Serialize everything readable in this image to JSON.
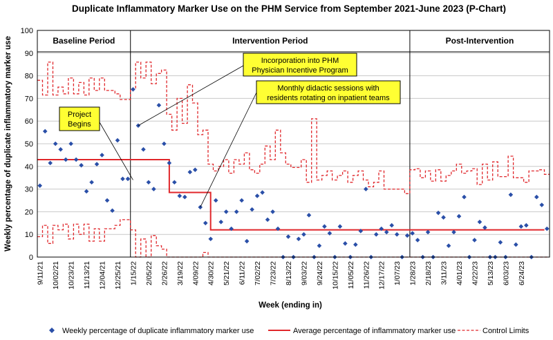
{
  "chart_data": {
    "type": "line",
    "title": "Duplicate Inflammatory Marker Use on the PHM Service from September 2021-June 2023 (P-Chart)",
    "xlabel": "Week (ending in)",
    "ylabel": "Weekly percentage of duplicate inflammatory marker use",
    "ylim": [
      0,
      100
    ],
    "yticks": [
      "0",
      "10",
      "20",
      "30",
      "40",
      "50",
      "60",
      "70",
      "80",
      "90",
      "100"
    ],
    "grid": true,
    "xtick_labels": [
      "9/11/21",
      "10/02/21",
      "10/23/21",
      "11/13/21",
      "12/04/21",
      "12/25/21",
      "1/15/22",
      "2/05/22",
      "2/26/22",
      "3/19/22",
      "4/09/22",
      "4/30/22",
      "5/21/22",
      "6/11/22",
      "7/02/22",
      "7/23/22",
      "8/13/22",
      "9/03/22",
      "9/24/22",
      "10/15/22",
      "11/05/22",
      "11/26/22",
      "12/17/22",
      "1/07/23",
      "1/28/23",
      "2/18/23",
      "3/11/23",
      "4/01/23",
      "4/22/23",
      "5/13/23",
      "6/03/23",
      "6/24/23"
    ],
    "periods": [
      "Baseline Period",
      "Intervention Period",
      "Post-Intervention"
    ],
    "period_breaks_week_index": [
      17.5,
      71.5
    ],
    "annotations": [
      {
        "label": "Project Begins",
        "line1": "Project",
        "line2": "Begins",
        "week_index": 18,
        "value": 34
      },
      {
        "label": "Incorporation into PHM Physician Incentive Program",
        "line1": "Incorporation into PHM",
        "line2": "Physician Incentive Program",
        "week_index": 19,
        "value": 58
      },
      {
        "label": "Monthly didactic sessions with residents rotating on inpatient teams",
        "line1": "Monthly didactic sessions with",
        "line2": "residents rotating on inpatient teams",
        "week_index": 31,
        "value": 22
      }
    ],
    "series": [
      {
        "name": "Weekly percentage of duplicate inflammatory marker use",
        "style": "diamond",
        "color": "#2a4fa8",
        "values": [
          31.5,
          55.5,
          41.5,
          50,
          47.5,
          43,
          50,
          43,
          40.5,
          29,
          33,
          41,
          45,
          25,
          20.5,
          51.5,
          34.5,
          34.5,
          74,
          58,
          47.5,
          33,
          30,
          67,
          50,
          41.5,
          33,
          27,
          26.5,
          37.5,
          38.5,
          22,
          15,
          8,
          25,
          15.5,
          20,
          12.5,
          20,
          25,
          7,
          21,
          27,
          28.5,
          16.5,
          20,
          12.5,
          0,
          9,
          0,
          8,
          10,
          18.5,
          0,
          5,
          13.5,
          10.5,
          0,
          13.5,
          6,
          0,
          5.5,
          11.5,
          30,
          0,
          10,
          12.5,
          11,
          14,
          10,
          0,
          9.5,
          10.5,
          7.5,
          0,
          11,
          0,
          19.5,
          17.5,
          5,
          11,
          18,
          26.5,
          0,
          7.5,
          15.5,
          13,
          0,
          0,
          6.5,
          0,
          27.5,
          5.5,
          13.5,
          14,
          0,
          26.5,
          23,
          12.5
        ]
      },
      {
        "name": "Average percentage of inflammatory marker use",
        "style": "solid",
        "color": "#e0262a",
        "segments": [
          {
            "from": 0,
            "to": 25.5,
            "value": 43
          },
          {
            "from": 25.5,
            "to": 33.5,
            "value": 28.5
          },
          {
            "from": 33.5,
            "to": 98,
            "value": 12
          }
        ]
      },
      {
        "name": "Control Limits",
        "style": "dashed",
        "color": "#e0262a",
        "ucl": [
          78,
          71.5,
          86,
          71.5,
          75,
          72,
          79,
          72,
          77,
          71.5,
          79,
          73.5,
          79,
          73.5,
          73.5,
          72,
          69.5,
          69.5,
          74,
          86,
          79,
          86,
          76.5,
          81,
          82.5,
          63,
          56,
          70,
          59,
          76,
          68,
          54,
          56,
          41,
          38,
          40,
          43,
          37,
          43,
          41,
          46,
          38.5,
          37,
          41,
          49,
          43,
          56,
          46,
          41,
          39.5,
          39.5,
          43,
          33,
          61,
          34,
          36,
          38,
          34,
          36,
          38,
          33,
          36,
          38,
          34,
          31,
          33,
          38,
          30,
          30,
          30,
          30,
          28,
          38.5,
          39,
          35,
          38,
          33.5,
          38.5,
          33.5,
          36,
          38,
          41,
          37,
          38,
          39,
          32,
          41,
          34,
          42,
          35.5,
          35.5,
          44.5,
          35,
          35,
          33,
          38,
          38,
          38.5,
          36.5
        ],
        "lcl": [
          9,
          14,
          6,
          14,
          12,
          14.5,
          8,
          14.5,
          10,
          14.5,
          7,
          12.5,
          7,
          12.5,
          12.5,
          14,
          16.5,
          16.5,
          12,
          0,
          8,
          0,
          9.5,
          5,
          3.5,
          0,
          0,
          0,
          0,
          0,
          0,
          0,
          2,
          0,
          0,
          0,
          0,
          0,
          0,
          0,
          0,
          0,
          0,
          0,
          0,
          0,
          0,
          0,
          0,
          0,
          0,
          0,
          0,
          0,
          0,
          0,
          0,
          0,
          0,
          0,
          0,
          0,
          0,
          0,
          0,
          0,
          0,
          0,
          0,
          0,
          0,
          0,
          0,
          0,
          0,
          0,
          0,
          0,
          0,
          0,
          0,
          0,
          0,
          0,
          0,
          0,
          0,
          0,
          0,
          0,
          0,
          0,
          0,
          0,
          0,
          0,
          0,
          0,
          0
        ]
      }
    ],
    "legend": [
      {
        "label": "Weekly percentage of duplicate inflammatory marker use",
        "marker": "diamond"
      },
      {
        "label": "Average percentage of inflammatory marker use",
        "marker": "solid-line"
      },
      {
        "label": "Control Limits",
        "marker": "dashed-line"
      }
    ],
    "colors": {
      "points": "#2a4fa8",
      "lines": "#e0262a",
      "annotation_fill": "#ffff33",
      "grid": "#c8c8c8"
    }
  }
}
